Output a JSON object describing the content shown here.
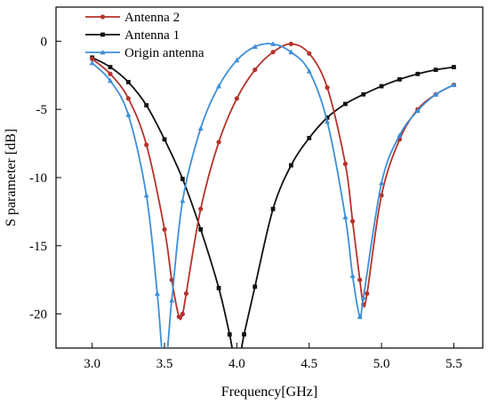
{
  "chart_data": {
    "type": "line",
    "xlabel": "Frequency[GHz]",
    "ylabel": "S parameter [dB]",
    "xlim": [
      2.75,
      5.7
    ],
    "ylim": [
      -22.5,
      2.5
    ],
    "xticks": [
      3.0,
      3.5,
      4.0,
      4.5,
      5.0,
      5.5
    ],
    "xtick_labels": [
      "3.0",
      "3.5",
      "4.0",
      "4.5",
      "5.0",
      "5.5"
    ],
    "yticks": [
      0,
      -5,
      -10,
      -15,
      -20
    ],
    "ytick_labels": [
      "0",
      "-5",
      "-10",
      "-15",
      "-20"
    ],
    "grid": false,
    "legend_position": "top-left",
    "series": [
      {
        "name": "Antenna 2",
        "color": "#b5332b",
        "marker": "circle",
        "x": [
          3.0,
          3.125,
          3.25,
          3.375,
          3.5,
          3.55,
          3.6,
          3.625,
          3.65,
          3.75,
          3.875,
          4.0,
          4.125,
          4.25,
          4.375,
          4.5,
          4.625,
          4.75,
          4.8,
          4.85,
          4.875,
          4.9,
          5.0,
          5.125,
          5.25,
          5.375,
          5.5
        ],
        "y": [
          -1.3,
          -2.4,
          -4.2,
          -7.6,
          -13.8,
          -17.5,
          -20.2,
          -20.0,
          -18.5,
          -12.3,
          -7.4,
          -4.2,
          -2.1,
          -0.8,
          -0.2,
          -0.9,
          -3.4,
          -9.0,
          -13.2,
          -17.5,
          -19.3,
          -18.5,
          -11.3,
          -7.2,
          -5.0,
          -3.9,
          -3.2
        ]
      },
      {
        "name": "Antenna 1",
        "color": "#111111",
        "marker": "square",
        "x": [
          3.0,
          3.125,
          3.25,
          3.375,
          3.5,
          3.625,
          3.75,
          3.875,
          3.95,
          4.0,
          4.05,
          4.125,
          4.25,
          4.375,
          4.5,
          4.625,
          4.75,
          4.875,
          5.0,
          5.125,
          5.25,
          5.375,
          5.5
        ],
        "y": [
          -1.2,
          -1.9,
          -3.0,
          -4.7,
          -7.2,
          -10.1,
          -13.8,
          -18.1,
          -21.5,
          -24.0,
          -21.5,
          -18.0,
          -12.3,
          -9.1,
          -7.1,
          -5.6,
          -4.6,
          -3.9,
          -3.3,
          -2.8,
          -2.4,
          -2.1,
          -1.9
        ]
      },
      {
        "name": "Origin antenna",
        "color": "#3d8fd8",
        "marker": "triangle",
        "x": [
          3.0,
          3.125,
          3.25,
          3.375,
          3.45,
          3.5,
          3.55,
          3.625,
          3.75,
          3.875,
          4.0,
          4.125,
          4.25,
          4.375,
          4.5,
          4.625,
          4.75,
          4.8,
          4.85,
          4.875,
          5.0,
          5.125,
          5.25,
          5.375,
          5.5
        ],
        "y": [
          -1.6,
          -2.9,
          -5.4,
          -11.3,
          -18.5,
          -24.0,
          -19.0,
          -11.7,
          -6.4,
          -3.3,
          -1.4,
          -0.4,
          -0.2,
          -0.8,
          -2.2,
          -5.9,
          -12.9,
          -17.2,
          -20.2,
          -18.8,
          -10.4,
          -6.9,
          -5.1,
          -3.9,
          -3.2
        ]
      }
    ]
  }
}
